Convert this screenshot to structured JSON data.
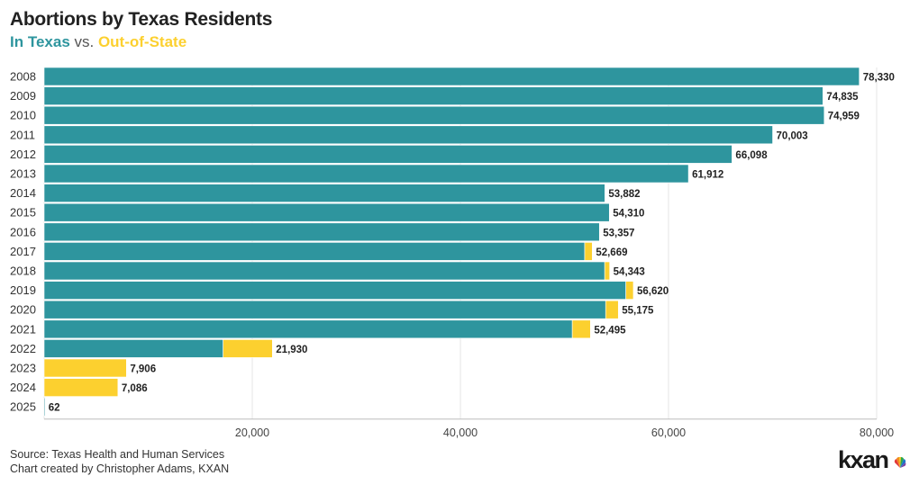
{
  "header": {
    "title": "Abortions by Texas Residents",
    "subtitle_in": "In Texas",
    "subtitle_vs": " vs. ",
    "subtitle_out": "Out-of-State"
  },
  "footer": {
    "source": "Source: Texas Health and Human Services",
    "credit": "Chart created by Christopher Adams, KXAN"
  },
  "logo": {
    "text": "kxan",
    "icon": "nbc-peacock-icon"
  },
  "colors": {
    "in_texas": "#2e959e",
    "out_of_state": "#fcd02f",
    "grid": "#e6e6e6",
    "axis": "#bdbdbd"
  },
  "chart_data": {
    "type": "bar",
    "orientation": "horizontal",
    "stacked": true,
    "title": "Abortions by Texas Residents",
    "categories": [
      "2008",
      "2009",
      "2010",
      "2011",
      "2012",
      "2013",
      "2014",
      "2015",
      "2016",
      "2017",
      "2018",
      "2019",
      "2020",
      "2021",
      "2022",
      "2023",
      "2024",
      "2025"
    ],
    "series": [
      {
        "name": "In Texas",
        "color": "#2e959e",
        "values": [
          78330,
          74835,
          74959,
          70003,
          66098,
          61912,
          53882,
          54310,
          53357,
          51947,
          53868,
          55900,
          53960,
          50750,
          17200,
          0,
          0,
          62
        ]
      },
      {
        "name": "Out-of-State",
        "color": "#fcd02f",
        "values": [
          0,
          0,
          0,
          0,
          0,
          0,
          0,
          0,
          0,
          722,
          475,
          720,
          1215,
          1745,
          4730,
          7906,
          7086,
          0
        ]
      }
    ],
    "totals": [
      78330,
      74835,
      74959,
      70003,
      66098,
      61912,
      53882,
      54310,
      53357,
      52669,
      54343,
      56620,
      55175,
      52495,
      21930,
      7906,
      7086,
      62
    ],
    "total_labels": [
      "78,330",
      "74,835",
      "74,959",
      "70,003",
      "66,098",
      "61,912",
      "53,882",
      "54,310",
      "53,357",
      "52,669",
      "54,343",
      "56,620",
      "55,175",
      "52,495",
      "21,930",
      "7,906",
      "7,086",
      "62"
    ],
    "x_ticks": [
      0,
      20000,
      40000,
      60000,
      80000
    ],
    "x_tick_labels": [
      "",
      "20,000",
      "40,000",
      "60,000",
      "80,000"
    ],
    "xlim": [
      0,
      80000
    ],
    "grid": true
  }
}
